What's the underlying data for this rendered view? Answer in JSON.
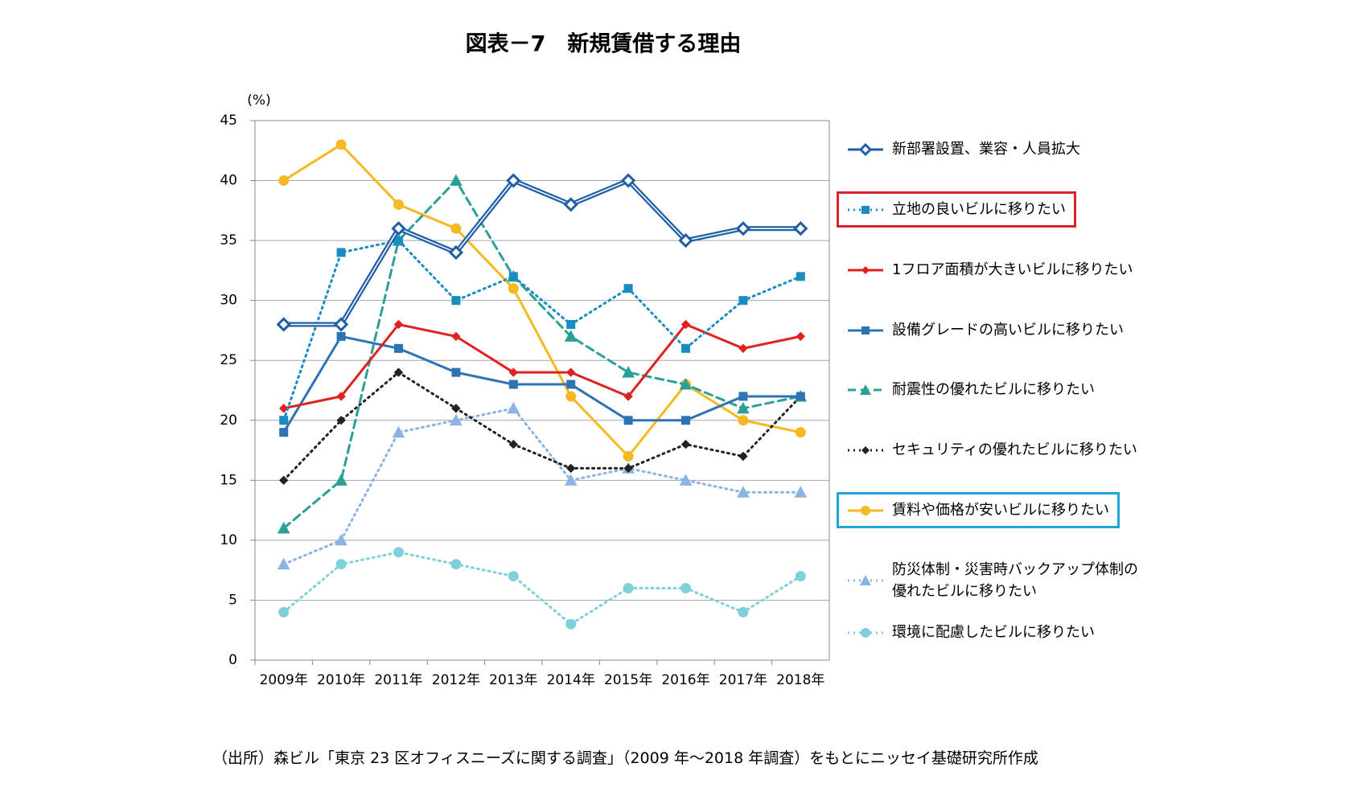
{
  "chart_data": {
    "type": "line",
    "title": "図表－7　新規賃借する理由",
    "y_label": "(%)",
    "source": "（出所）森ビル「東京 23 区オフィスニーズに関する調査」（2009 年～2018 年調査）をもとにニッセイ基礎研究所作成",
    "categories": [
      "2009年",
      "2010年",
      "2011年",
      "2012年",
      "2013年",
      "2014年",
      "2015年",
      "2016年",
      "2017年",
      "2018年"
    ],
    "ylim": [
      0,
      45
    ],
    "yticks": [
      0,
      5,
      10,
      15,
      20,
      25,
      30,
      35,
      40,
      45
    ],
    "grid": true,
    "series": [
      {
        "name": "新部署設置、業容・人員拡大",
        "color": "#1f5fa8",
        "dash": "solid",
        "marker": "diamond",
        "values": [
          28,
          28,
          36,
          34,
          40,
          38,
          40,
          35,
          36,
          36
        ]
      },
      {
        "name": "立地の良いビルに移りたい",
        "color": "#1a8cc0",
        "dash": "dot",
        "marker": "square",
        "values": [
          20,
          34,
          35,
          30,
          32,
          28,
          31,
          26,
          30,
          32
        ]
      },
      {
        "name": "1フロア面積が大きいビルに移りたい",
        "color": "#e0211d",
        "dash": "solid",
        "marker": "smalldiamond",
        "values": [
          21,
          22,
          28,
          27,
          24,
          24,
          22,
          28,
          26,
          27
        ]
      },
      {
        "name": "設備グレードの高いビルに移りたい",
        "color": "#2e74b5",
        "dash": "solid",
        "marker": "square",
        "values": [
          19,
          27,
          26,
          24,
          23,
          23,
          20,
          20,
          22,
          22
        ]
      },
      {
        "name": "耐震性の優れたビルに移りたい",
        "color": "#2aa198",
        "dash": "dash",
        "marker": "triangle",
        "values": [
          11,
          15,
          35,
          40,
          32,
          27,
          24,
          23,
          21,
          22
        ]
      },
      {
        "name": "セキュリティの優れたビルに移りたい",
        "color": "#222222",
        "dash": "dot",
        "marker": "smalldiamond",
        "values": [
          15,
          20,
          24,
          21,
          18,
          16,
          16,
          18,
          17,
          22
        ]
      },
      {
        "name": "賃料や価格が安いビルに移りたい",
        "color": "#f5b921",
        "dash": "solid",
        "marker": "circle",
        "values": [
          40,
          43,
          38,
          36,
          31,
          22,
          17,
          23,
          20,
          19
        ]
      },
      {
        "name": "防災体制・災害時バックアップ体制の\n優れたビルに移りたい",
        "color": "#8db3e2",
        "dash": "dot",
        "marker": "triangle",
        "values": [
          8,
          10,
          19,
          20,
          21,
          15,
          16,
          15,
          14,
          14
        ]
      },
      {
        "name": "環境に配慮したビルに移りたい",
        "color": "#7fd1d9",
        "dash": "dot",
        "marker": "circle",
        "values": [
          4,
          8,
          9,
          8,
          7,
          3,
          6,
          6,
          4,
          7
        ]
      }
    ]
  }
}
